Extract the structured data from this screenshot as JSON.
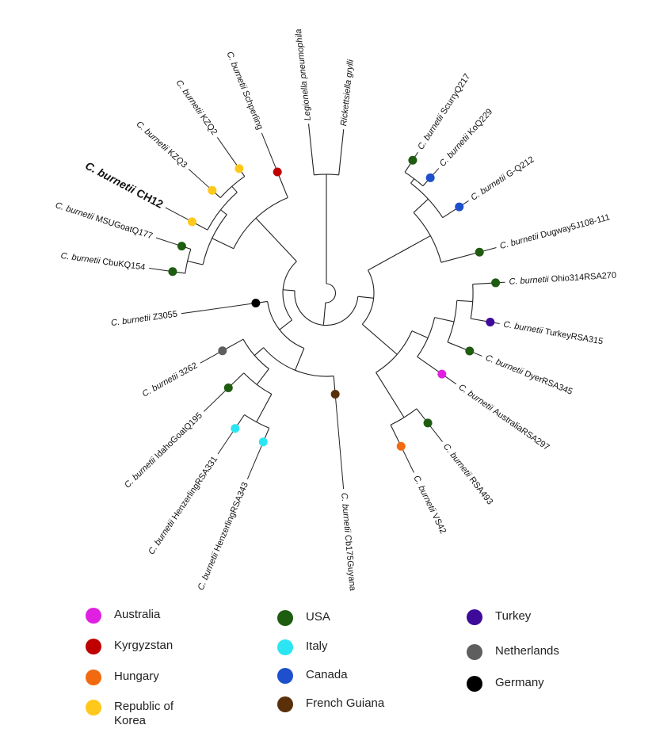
{
  "tree": {
    "species": "C. burnetii",
    "outgroups": [
      "Legionella pneumophila",
      "Rickettsiella grylli"
    ],
    "strains": [
      {
        "id": "Schperling",
        "country": "Kyrgyzstan"
      },
      {
        "id": "KZQ2",
        "country": "Republic of Korea"
      },
      {
        "id": "KZQ3",
        "country": "Republic of Korea"
      },
      {
        "id": "CH12",
        "country": "Republic of Korea",
        "highlight": true
      },
      {
        "id": "MSUGoatQ177",
        "country": "USA"
      },
      {
        "id": "CbuKQ154",
        "country": "USA"
      },
      {
        "id": "Z3055",
        "country": "Germany"
      },
      {
        "id": "3262",
        "country": "Netherlands"
      },
      {
        "id": "IdahoGoatQ195",
        "country": "USA"
      },
      {
        "id": "HenzerlingRSA331",
        "country": "Italy"
      },
      {
        "id": "HenzerlingRSA343",
        "country": "Italy"
      },
      {
        "id": "Cb175Guyana",
        "country": "French Guiana"
      },
      {
        "id": "VS42",
        "country": "Hungary"
      },
      {
        "id": "RSA493",
        "country": "USA"
      },
      {
        "id": "AustraliaRSA297",
        "country": "Australia"
      },
      {
        "id": "DyerRSA345",
        "country": "USA"
      },
      {
        "id": "TurkeyRSA315",
        "country": "Turkey"
      },
      {
        "id": "Ohio314RSA270",
        "country": "USA"
      },
      {
        "id": "Dugway5J108-111",
        "country": "USA"
      },
      {
        "id": "G-Q212",
        "country": "Canada"
      },
      {
        "id": "KoQ229",
        "country": "Canada"
      },
      {
        "id": "ScurryQ217",
        "country": "USA"
      }
    ]
  },
  "legend": [
    {
      "label": "Australia",
      "color": "#e020e0"
    },
    {
      "label": "Kyrgyzstan",
      "color": "#c00000"
    },
    {
      "label": "Hungary",
      "color": "#f26a10"
    },
    {
      "label": "Republic of Korea",
      "color": "#ffc81a"
    },
    {
      "label": "USA",
      "color": "#1e5c10"
    },
    {
      "label": "Italy",
      "color": "#2ce5f2"
    },
    {
      "label": "Canada",
      "color": "#1e4fcc"
    },
    {
      "label": "French Guiana",
      "color": "#5a300a"
    },
    {
      "label": "Turkey",
      "color": "#3d0a99"
    },
    {
      "label": "Netherlands",
      "color": "#5e5e5e"
    },
    {
      "label": "Germany",
      "color": "#000000"
    }
  ]
}
